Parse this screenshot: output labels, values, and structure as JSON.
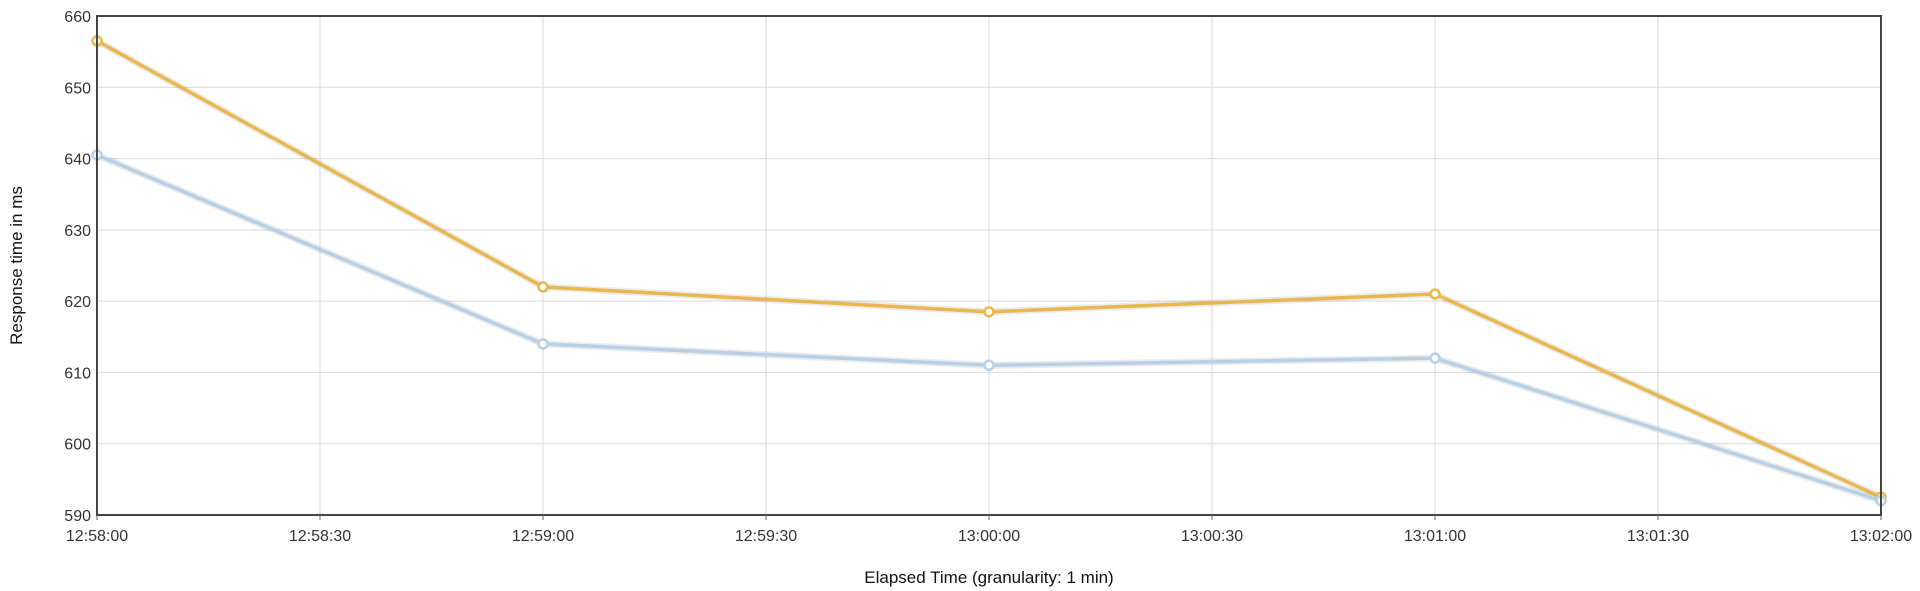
{
  "chart_data": {
    "type": "line",
    "title": "",
    "xlabel": "Elapsed Time (granularity: 1 min)",
    "ylabel": "Response time in ms",
    "x": [
      "12:58:00",
      "12:59:00",
      "13:00:00",
      "13:01:00",
      "13:02:00"
    ],
    "x_ticks": [
      "12:58:00",
      "12:58:30",
      "12:59:00",
      "12:59:30",
      "13:00:00",
      "13:00:30",
      "13:01:00",
      "13:01:30",
      "13:02:00"
    ],
    "xlim": [
      "12:58:00",
      "13:02:00"
    ],
    "ylim": [
      590,
      660
    ],
    "y_ticks": [
      590,
      600,
      610,
      620,
      630,
      640,
      650,
      660
    ],
    "grid": true,
    "legend": "none",
    "series": [
      {
        "color": "#e8b84e",
        "values": [
          656.5,
          622,
          618.5,
          621,
          592.5
        ]
      },
      {
        "color": "#b7d0e6",
        "values": [
          640.5,
          614,
          611,
          612,
          592
        ]
      }
    ]
  }
}
